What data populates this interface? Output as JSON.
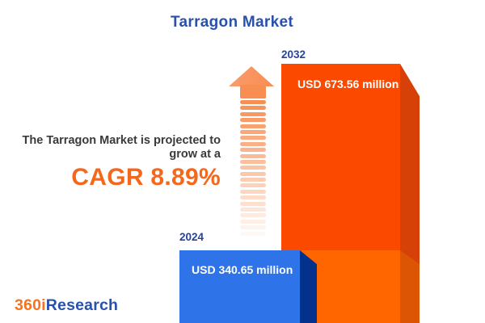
{
  "title": "Tarragon Market",
  "tagline": {
    "line1": "The Tarragon Market is projected to",
    "line2": "grow at a",
    "cagr": "CAGR 8.89%"
  },
  "bars": [
    {
      "year": "2024",
      "value_label": "USD 340.65 million"
    },
    {
      "year": "2032",
      "value_label": "USD 673.56 million"
    }
  ],
  "logo": {
    "prefix": "360i",
    "suffix": "Research"
  },
  "icons": {
    "growth_arrow": "upward-dashed-arrow"
  },
  "colors": {
    "background": "#FFFFFF",
    "title-blue": "#2850AC",
    "year-label-blue": "#24449E",
    "bar-2032-face": "#FB4A00",
    "bar-2032-side": "#D64108",
    "bar-2032-band-face": "#FF6600",
    "bar-2032-band-side": "#DC5504",
    "bar-2024-face": "#2E73E7",
    "bar-2024-side": "#04318C",
    "arrow-orange": "#F88E52",
    "cagr-orange": "#F5671A",
    "body-text": "#3A3A3A",
    "logo-orange": "#F57221",
    "logo-blue": "#2850AC",
    "value-text": "#FFFFFF"
  },
  "chart_data": {
    "type": "bar",
    "categories": [
      "2024",
      "2032"
    ],
    "values": [
      340.65,
      673.56
    ],
    "unit": "USD million",
    "value_labels": [
      "USD 340.65 million",
      "USD 673.56 million"
    ],
    "title": "Tarragon Market",
    "annotation": "The Tarragon Market is projected to grow at a CAGR 8.89%",
    "cagr_percent": 8.89,
    "legend": false,
    "grid": false,
    "bar_colors": {
      "2024": "#2E73E7",
      "2032": "#FB4A00"
    }
  }
}
